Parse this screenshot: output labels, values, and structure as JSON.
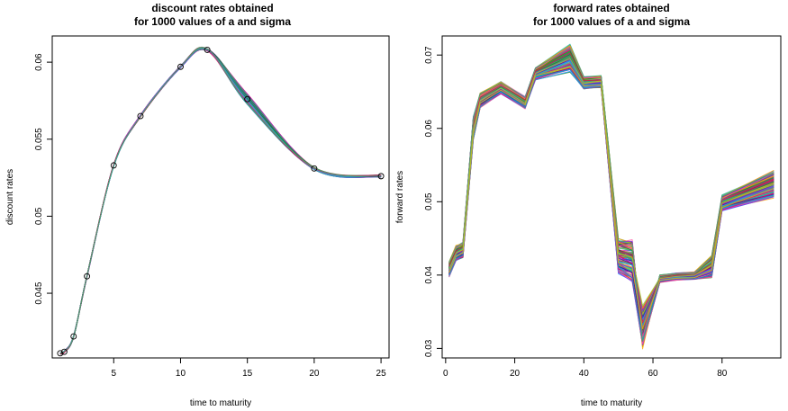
{
  "chart_data": [
    {
      "type": "line",
      "title_line1": "discount rates obtained",
      "title_line2": "for 1000 values of a and sigma",
      "xlabel": "time to maturity",
      "ylabel": "discount rates",
      "xlim": [
        0.4,
        25.6
      ],
      "ylim": [
        0.0408,
        0.0617
      ],
      "xticks": [
        5,
        10,
        15,
        20,
        25
      ],
      "yticks": [
        0.045,
        0.05,
        0.055,
        0.06
      ],
      "x": [
        1,
        1.3,
        2,
        3,
        5,
        7,
        10,
        12,
        15,
        20,
        25
      ],
      "markers": [
        [
          1,
          0.0411
        ],
        [
          1.3,
          0.0412
        ],
        [
          2,
          0.0422
        ],
        [
          3,
          0.0461
        ],
        [
          5,
          0.0533
        ],
        [
          7,
          0.0565
        ],
        [
          10,
          0.0597
        ],
        [
          12,
          0.0608
        ],
        [
          15,
          0.0576
        ],
        [
          20,
          0.0531
        ],
        [
          25,
          0.0526
        ]
      ],
      "series_count": 1000,
      "series_colors": [
        "#e6007e",
        "#00a0c8",
        "#4b0082",
        "#228b22",
        "#ff4fa0",
        "#1e90ff",
        "#8a2be2",
        "#20b2aa",
        "#dc143c",
        "#3cb371"
      ]
    },
    {
      "type": "line",
      "title_line1": "forward rates obtained",
      "title_line2": "for 1000 values of a and sigma",
      "xlabel": "time to maturity",
      "ylabel": "forward rates",
      "xlim": [
        -1,
        97
      ],
      "ylim": [
        0.0287,
        0.0726
      ],
      "xticks": [
        0,
        20,
        40,
        60,
        80
      ],
      "yticks": [
        0.03,
        0.04,
        0.05,
        0.06,
        0.07
      ],
      "x": [
        1,
        3,
        5,
        8,
        10,
        16,
        23,
        26,
        36,
        40,
        45,
        50,
        54,
        57,
        62,
        67,
        72,
        77,
        80,
        95
      ],
      "center": [
        0.0408,
        0.043,
        0.0434,
        0.06,
        0.0638,
        0.0655,
        0.0635,
        0.0675,
        0.0695,
        0.0662,
        0.0664,
        0.0426,
        0.042,
        0.0355,
        0.0395,
        0.0398,
        0.0399,
        0.0412,
        0.0498,
        0.0524
      ],
      "spread": [
        0.001,
        0.001,
        0.001,
        0.0015,
        0.001,
        0.0008,
        0.0008,
        0.0008,
        0.0018,
        0.0008,
        0.0008,
        0.0022,
        0.0028,
        0.0055,
        0.0005,
        0.0005,
        0.0005,
        0.0015,
        0.001,
        0.0018
      ],
      "series_count": 1000,
      "series_colors": [
        "#e6007e",
        "#00a0c8",
        "#4b0082",
        "#228b22",
        "#ff4fa0",
        "#1e90ff",
        "#8a2be2",
        "#20b2aa",
        "#dc143c",
        "#3cb371",
        "#ffa500",
        "#9acd32"
      ]
    }
  ]
}
